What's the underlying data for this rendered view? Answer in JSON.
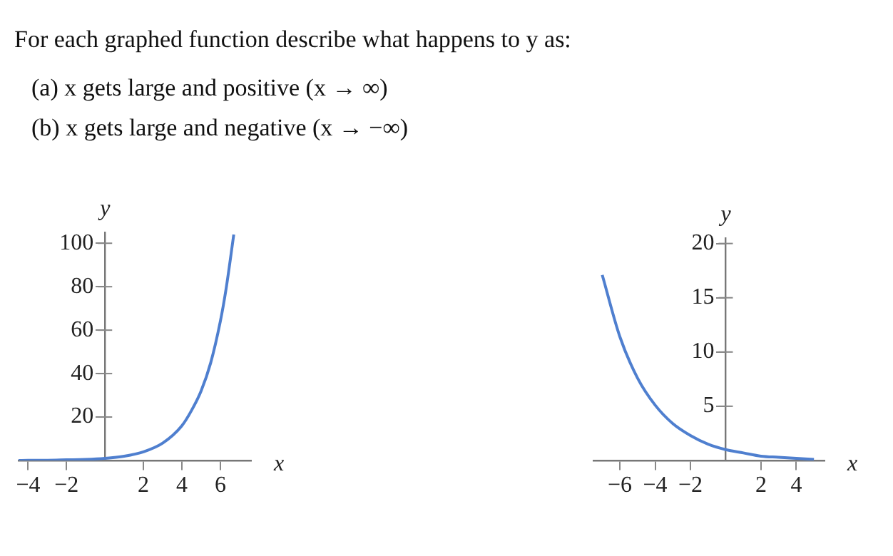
{
  "chart_data": [
    {
      "type": "line",
      "title": "For each graphed function describe what happens to y as:",
      "annotations": [
        "(a) x gets large and positive (x → ∞)",
        "(b) x gets large and negative (x → −∞)"
      ],
      "xlabel": "x",
      "ylabel": "y",
      "x": [
        -4.5,
        -4,
        -3,
        -2,
        -1,
        0,
        1,
        2,
        3,
        4,
        4.5,
        5,
        5.5,
        6,
        6.3,
        6.7
      ],
      "series": [
        {
          "color": "#4f7fcf",
          "values": [
            0,
            0.1,
            0.1,
            0.3,
            0.5,
            1,
            2,
            4,
            8,
            16,
            23,
            32,
            45,
            64,
            79,
            104
          ]
        }
      ],
      "xlim": [
        -4.5,
        7.6
      ],
      "ylim": [
        0,
        105
      ],
      "xticks": [
        -4,
        -2,
        2,
        4,
        6
      ],
      "yticks": [
        20,
        40,
        60,
        80,
        100
      ],
      "grid": false,
      "legend": false,
      "marker": "none",
      "line_style": "solid"
    },
    {
      "type": "line",
      "xlabel": "x",
      "ylabel": "y",
      "x": [
        -7,
        -6,
        -5,
        -4,
        -3,
        -2,
        -1,
        0,
        1,
        2,
        3,
        4,
        5
      ],
      "series": [
        {
          "color": "#4f7fcf",
          "values": [
            17.1,
            11.4,
            7.6,
            5.1,
            3.4,
            2.3,
            1.5,
            1,
            0.7,
            0.4,
            0.3,
            0.2,
            0.1
          ]
        }
      ],
      "xlim": [
        -7.5,
        5.6
      ],
      "ylim": [
        0,
        20.5
      ],
      "xticks": [
        -6,
        -4,
        -2,
        2,
        4
      ],
      "yticks": [
        5,
        10,
        15,
        20
      ],
      "grid": false,
      "legend": false,
      "marker": "none",
      "line_style": "solid"
    }
  ]
}
